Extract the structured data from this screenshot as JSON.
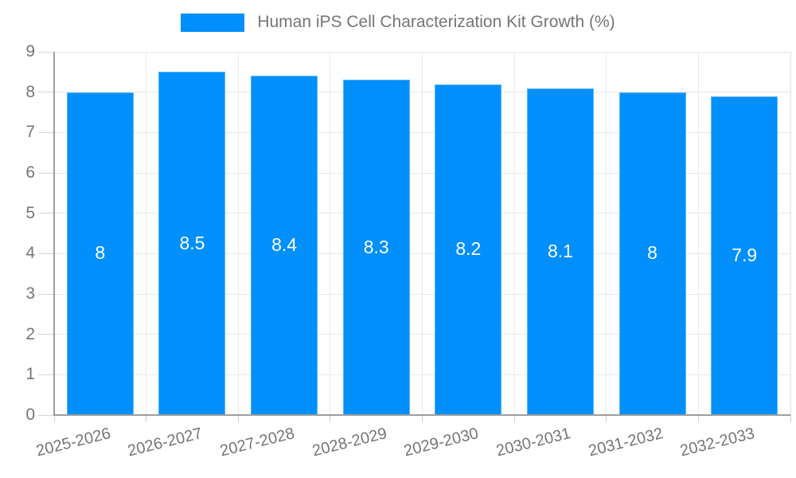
{
  "chart_data": {
    "type": "bar",
    "title": "Human iPS Cell Characterization Kit Growth (%)",
    "categories": [
      "2025-2026",
      "2026-2027",
      "2027-2028",
      "2028-2029",
      "2029-2030",
      "2030-2031",
      "2031-2032",
      "2032-2033"
    ],
    "values": [
      8,
      8.5,
      8.4,
      8.3,
      8.2,
      8.1,
      8,
      7.9
    ],
    "bar_labels": [
      "8",
      "8.5",
      "8.4",
      "8.3",
      "8.2",
      "8.1",
      "8",
      "7.9"
    ],
    "xlabel": "",
    "ylabel": "",
    "ylim": [
      0,
      9
    ],
    "yticks": [
      0,
      1,
      2,
      3,
      4,
      5,
      6,
      7,
      8,
      9
    ],
    "grid": true,
    "legend_position": "top",
    "colors": {
      "bar": "#008FFB",
      "bar_label_text": "#ffffff",
      "axis_text": "#757575",
      "gridline": "#e6e6e6",
      "axis_line": "#9e9e9e"
    }
  }
}
